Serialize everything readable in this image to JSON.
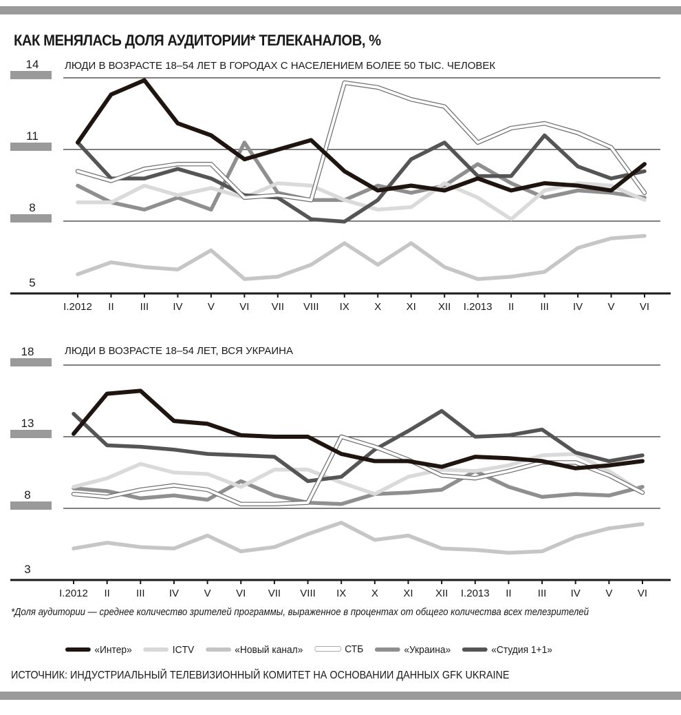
{
  "title": "КАК МЕНЯЛАСЬ ДОЛЯ АУДИТОРИИ* ТЕЛЕКАНАЛОВ, %",
  "footnote": "*Доля аудитории — среднее количество зрителей программы, выраженное в процентах от общего количества всех телезрителей",
  "source": "ИСТОЧНИК: ИНДУСТРИАЛЬНЫЙ ТЕЛЕВИЗИОННЫЙ КОМИТЕТ НА ОСНОВАНИИ ДАННЫХ GFK UKRAINE",
  "legend": [
    {
      "name": "«Интер»",
      "color": "#1f1510"
    },
    {
      "name": "ICTV",
      "color": "#d8d8d8"
    },
    {
      "name": "«Новый канал»",
      "color": "#c4c4c4"
    },
    {
      "name": "СТБ",
      "color": "#ffffff"
    },
    {
      "name": "«Украина»",
      "color": "#8f8f8f"
    },
    {
      "name": "«Студия 1+1»",
      "color": "#555555"
    }
  ],
  "chart_data": [
    {
      "type": "line",
      "title": "ЛЮДИ В ВОЗРАСТЕ 18–54 ЛЕТ В ГОРОДАХ С НАСЕЛЕНИЕМ БОЛЕЕ 50 ТЫС. ЧЕЛОВЕК",
      "ylabel": "%",
      "yticks": [
        14,
        11,
        8,
        5
      ],
      "ylim": [
        5,
        14
      ],
      "categories": [
        "I.2012",
        "II",
        "III",
        "IV",
        "V",
        "VI",
        "VII",
        "VIII",
        "IX",
        "X",
        "XI",
        "XII",
        "I.2013",
        "II",
        "III",
        "IV",
        "V",
        "VI"
      ],
      "series": [
        {
          "name": "«Новый канал»",
          "values": [
            5.8,
            6.3,
            6.1,
            6.0,
            6.8,
            5.6,
            5.7,
            6.2,
            7.1,
            6.2,
            7.1,
            6.1,
            5.6,
            5.7,
            5.9,
            6.9,
            7.3,
            7.4
          ]
        },
        {
          "name": "«Украина»",
          "values": [
            9.5,
            8.8,
            8.5,
            9.0,
            8.5,
            11.3,
            9.2,
            8.9,
            8.9,
            9.5,
            9.2,
            9.5,
            10.4,
            9.6,
            9.0,
            9.3,
            9.2,
            9.0
          ]
        },
        {
          "name": "ICTV",
          "values": [
            8.8,
            8.8,
            9.5,
            9.1,
            9.4,
            9.0,
            9.6,
            9.5,
            8.9,
            8.5,
            8.6,
            9.6,
            9.0,
            8.1,
            9.3,
            9.6,
            9.5,
            8.9
          ]
        },
        {
          "name": "«Студия 1+1»",
          "values": [
            11.3,
            9.8,
            9.8,
            10.2,
            9.8,
            9.1,
            9.0,
            8.1,
            8.0,
            8.9,
            10.6,
            11.3,
            9.9,
            9.9,
            11.6,
            10.3,
            9.8,
            10.1
          ]
        },
        {
          "name": "СТБ",
          "values": [
            10.1,
            9.7,
            10.2,
            10.4,
            10.4,
            9.0,
            9.1,
            8.9,
            13.8,
            13.6,
            13.1,
            12.8,
            11.3,
            11.9,
            12.1,
            11.7,
            11.1,
            9.2
          ]
        },
        {
          "name": "«Интер»",
          "values": [
            11.3,
            13.3,
            13.9,
            12.1,
            11.6,
            10.6,
            11.0,
            11.4,
            10.1,
            9.3,
            9.5,
            9.3,
            9.8,
            9.3,
            9.6,
            9.5,
            9.3,
            10.4
          ]
        }
      ]
    },
    {
      "type": "line",
      "title": "ЛЮДИ В ВОЗРАСТЕ 18–54 ЛЕТ, ВСЯ УКРАИНА",
      "ylabel": "%",
      "yticks": [
        18,
        13,
        8,
        3
      ],
      "ylim": [
        3,
        18
      ],
      "categories": [
        "I.2012",
        "II",
        "III",
        "IV",
        "V",
        "VI",
        "VII",
        "VIII",
        "IX",
        "X",
        "XI",
        "XII",
        "I.2013",
        "II",
        "III",
        "IV",
        "V",
        "VI"
      ],
      "series": [
        {
          "name": "«Новый канал»",
          "values": [
            5.2,
            5.6,
            5.3,
            5.2,
            6.1,
            5.0,
            5.3,
            6.2,
            7.0,
            5.8,
            6.1,
            5.2,
            5.1,
            4.9,
            5.0,
            6.0,
            6.6,
            6.9
          ]
        },
        {
          "name": "«Украина»",
          "values": [
            9.4,
            9.2,
            8.7,
            8.9,
            8.6,
            9.9,
            8.9,
            8.4,
            8.3,
            9.0,
            9.1,
            9.3,
            10.6,
            9.5,
            8.8,
            9.0,
            8.9,
            9.5
          ]
        },
        {
          "name": "ICTV",
          "values": [
            9.5,
            10.1,
            11.1,
            10.5,
            10.4,
            9.5,
            10.7,
            10.7,
            9.8,
            9.0,
            10.2,
            10.7,
            10.6,
            11.0,
            11.7,
            11.8,
            10.6,
            9.1
          ]
        },
        {
          "name": "«Студия 1+1»",
          "values": [
            14.6,
            12.4,
            12.3,
            12.1,
            11.8,
            11.7,
            11.6,
            9.9,
            10.2,
            12.1,
            13.4,
            14.8,
            13.0,
            13.1,
            13.5,
            11.9,
            11.3,
            11.7
          ]
        },
        {
          "name": "СТБ",
          "values": [
            9.0,
            8.8,
            9.3,
            9.6,
            9.3,
            8.3,
            8.3,
            8.4,
            13.0,
            12.3,
            11.4,
            10.3,
            10.1,
            10.6,
            11.2,
            11.2,
            10.3,
            9.1
          ]
        },
        {
          "name": "«Интер»",
          "values": [
            13.2,
            16.0,
            16.2,
            14.1,
            13.9,
            13.1,
            13.0,
            13.0,
            11.8,
            11.3,
            11.3,
            10.9,
            11.6,
            11.5,
            11.3,
            10.8,
            11.0,
            11.3
          ]
        }
      ]
    }
  ]
}
